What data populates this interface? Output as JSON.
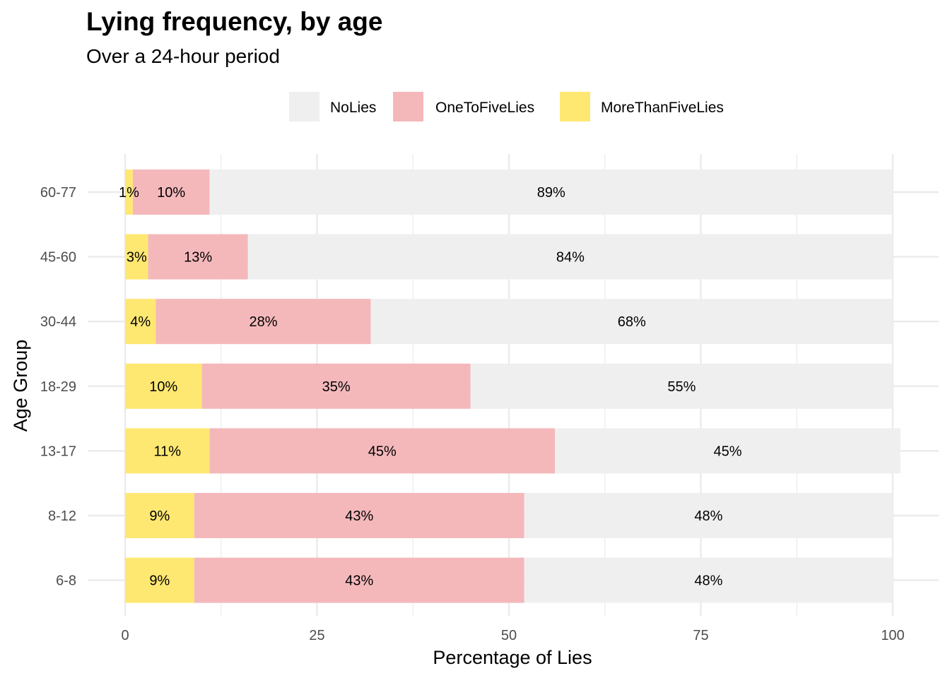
{
  "chart_data": {
    "type": "bar",
    "orientation": "horizontal",
    "stacked": true,
    "title": "Lying frequency, by age",
    "subtitle": "Over a 24-hour period",
    "xlabel": "Percentage of Lies",
    "ylabel": "Age Group",
    "xlim": [
      0,
      100
    ],
    "x_ticks": [
      0,
      25,
      50,
      75,
      100
    ],
    "x_tick_labels": [
      "0",
      "25",
      "50",
      "75",
      "100"
    ],
    "grid": true,
    "legend_position": "top",
    "categories": [
      "60-77",
      "45-60",
      "30-44",
      "18-29",
      "13-17",
      "8-12",
      "6-8"
    ],
    "stack_order": [
      "MoreThanFiveLies",
      "OneToFiveLies",
      "NoLies"
    ],
    "series": [
      {
        "name": "NoLies",
        "color": "#efefef",
        "values": [
          89,
          84,
          68,
          55,
          45,
          48,
          48
        ],
        "labels": [
          "89%",
          "84%",
          "68%",
          "55%",
          "45%",
          "48%",
          "48%"
        ]
      },
      {
        "name": "OneToFiveLies",
        "color": "#f4b8bb",
        "values": [
          10,
          13,
          28,
          35,
          45,
          43,
          43
        ],
        "labels": [
          "10%",
          "13%",
          "28%",
          "35%",
          "45%",
          "43%",
          "43%"
        ]
      },
      {
        "name": "MoreThanFiveLies",
        "color": "#ffe872",
        "values": [
          1,
          3,
          4,
          10,
          11,
          9,
          9
        ],
        "labels": [
          "1%",
          "3%",
          "4%",
          "10%",
          "11%",
          "9%",
          "9%"
        ]
      }
    ]
  }
}
